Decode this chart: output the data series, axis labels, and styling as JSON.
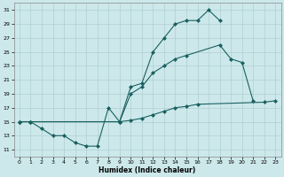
{
  "xlabel": "Humidex (Indice chaleur)",
  "bg_color": "#cce8ea",
  "grid_color": "#b0cfd2",
  "line_color": "#1a6060",
  "xlim": [
    -0.5,
    23.5
  ],
  "ylim": [
    10,
    32
  ],
  "yticks": [
    11,
    13,
    15,
    17,
    19,
    21,
    23,
    25,
    27,
    29,
    31
  ],
  "xticks": [
    0,
    1,
    2,
    3,
    4,
    5,
    6,
    7,
    8,
    9,
    10,
    11,
    12,
    13,
    14,
    15,
    16,
    17,
    18,
    19,
    20,
    21,
    22,
    23
  ],
  "line1_x": [
    0,
    1,
    2,
    3,
    4,
    5,
    6,
    7,
    8,
    9,
    10,
    11,
    12,
    13,
    14,
    15,
    16,
    17,
    18
  ],
  "line1_y": [
    15,
    15,
    14,
    13,
    13,
    12,
    11.5,
    11.5,
    17,
    15,
    20,
    20.5,
    25,
    27,
    29,
    29.5,
    29.5,
    31,
    29.5
  ],
  "line2_x": [
    0,
    1,
    9,
    10,
    11,
    12,
    13,
    14,
    15,
    18,
    19,
    20,
    21
  ],
  "line2_y": [
    15,
    15,
    15,
    19,
    20,
    22,
    23,
    24,
    24.5,
    26,
    24,
    23.5,
    18
  ],
  "line3_x": [
    0,
    1,
    9,
    10,
    11,
    12,
    13,
    14,
    15,
    16,
    22,
    23
  ],
  "line3_y": [
    15,
    15,
    15,
    15.2,
    15.5,
    16,
    16.5,
    17,
    17.2,
    17.5,
    17.8,
    18
  ]
}
